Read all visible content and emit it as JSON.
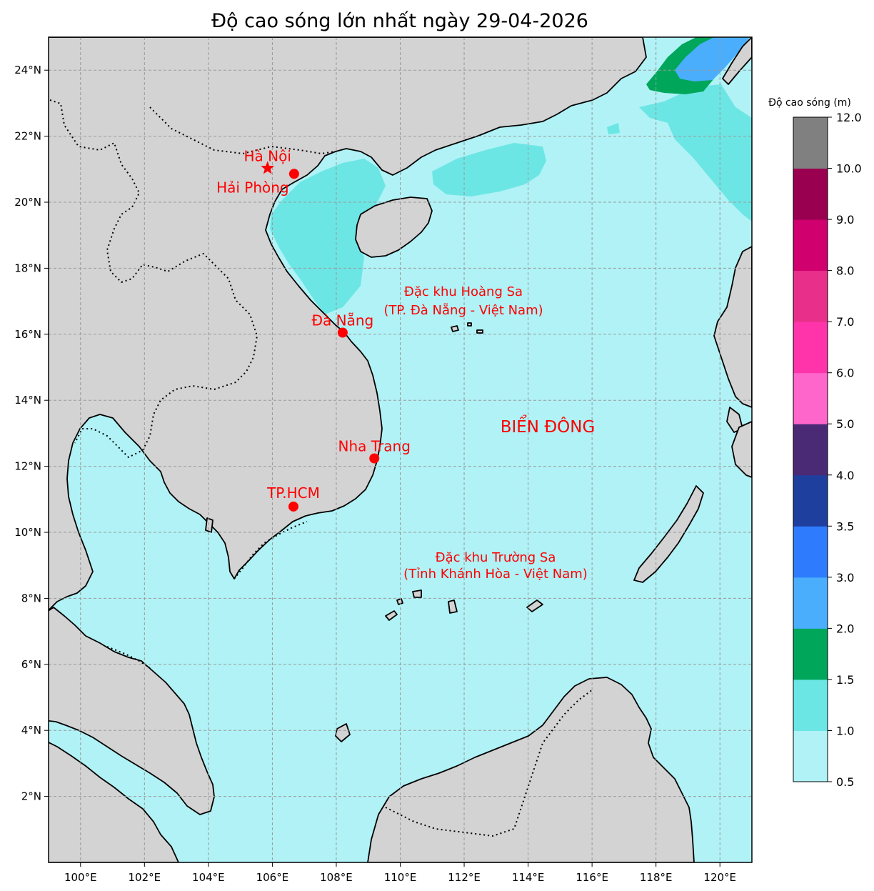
{
  "title": "Độ cao sóng lớn nhất ngày 29-04-2026",
  "map": {
    "lon_range": [
      99,
      121
    ],
    "lat_range": [
      0,
      25
    ],
    "lon_ticks": [
      {
        "value": 100,
        "label": "100°E"
      },
      {
        "value": 102,
        "label": "102°E"
      },
      {
        "value": 104,
        "label": "104°E"
      },
      {
        "value": 106,
        "label": "106°E"
      },
      {
        "value": 108,
        "label": "108°E"
      },
      {
        "value": 110,
        "label": "110°E"
      },
      {
        "value": 112,
        "label": "112°E"
      },
      {
        "value": 114,
        "label": "114°E"
      },
      {
        "value": 116,
        "label": "116°E"
      },
      {
        "value": 118,
        "label": "118°E"
      },
      {
        "value": 120,
        "label": "120°E"
      }
    ],
    "lat_ticks": [
      {
        "value": 2,
        "label": "2°N"
      },
      {
        "value": 4,
        "label": "4°N"
      },
      {
        "value": 6,
        "label": "6°N"
      },
      {
        "value": 8,
        "label": "8°N"
      },
      {
        "value": 10,
        "label": "10°N"
      },
      {
        "value": 12,
        "label": "12°N"
      },
      {
        "value": 14,
        "label": "14°N"
      },
      {
        "value": 16,
        "label": "16°N"
      },
      {
        "value": 18,
        "label": "18°N"
      },
      {
        "value": 20,
        "label": "20°N"
      },
      {
        "value": 22,
        "label": "22°N"
      },
      {
        "value": 24,
        "label": "24°N"
      }
    ],
    "grid": true,
    "colors": {
      "land": "#d3d3d3",
      "sea": "#b0f2f6",
      "coast": "#000000",
      "marker": "#ff0000",
      "label": "#ff0000"
    }
  },
  "cities": [
    {
      "name": "Hà Nội",
      "lon": 105.85,
      "lat": 21.03,
      "marker": "star"
    },
    {
      "name": "Hải Phòng",
      "lon": 106.68,
      "lat": 20.86,
      "marker": "dot"
    },
    {
      "name": "Đà Nẵng",
      "lon": 108.2,
      "lat": 16.05,
      "marker": "dot"
    },
    {
      "name": "Nha Trang",
      "lon": 109.19,
      "lat": 12.24,
      "marker": "dot"
    },
    {
      "name": "TP.HCM",
      "lon": 106.66,
      "lat": 10.78,
      "marker": "dot"
    }
  ],
  "region_labels": {
    "hoang_sa_line1": "Đặc khu Hoàng Sa",
    "hoang_sa_line2": "(TP. Đà Nẵng - Việt Nam)",
    "truong_sa_line1": "Đặc khu Trường Sa",
    "truong_sa_line2": "(Tỉnh Khánh Hòa - Việt Nam)",
    "bien_dong": "BIỂN ĐÔNG"
  },
  "colorbar": {
    "title": "Độ cao sóng (m)",
    "bins": [
      {
        "from": 0.5,
        "to": 1.0,
        "color": "#b0f2f6"
      },
      {
        "from": 1.0,
        "to": 1.5,
        "color": "#6ce6e4"
      },
      {
        "from": 1.5,
        "to": 2.0,
        "color": "#00a65a"
      },
      {
        "from": 2.0,
        "to": 3.0,
        "color": "#4aaefd"
      },
      {
        "from": 3.0,
        "to": 3.5,
        "color": "#2e7cfd"
      },
      {
        "from": 3.5,
        "to": 4.0,
        "color": "#1f3f9e"
      },
      {
        "from": 4.0,
        "to": 5.0,
        "color": "#4b2a75"
      },
      {
        "from": 5.0,
        "to": 6.0,
        "color": "#ff66cc"
      },
      {
        "from": 6.0,
        "to": 7.0,
        "color": "#ff33aa"
      },
      {
        "from": 7.0,
        "to": 8.0,
        "color": "#e8308a"
      },
      {
        "from": 8.0,
        "to": 9.0,
        "color": "#d0006f"
      },
      {
        "from": 9.0,
        "to": 10.0,
        "color": "#990050"
      },
      {
        "from": 10.0,
        "to": 12.0,
        "color": "#808080"
      }
    ],
    "tick_labels": [
      "0.5",
      "1.0",
      "1.5",
      "2.0",
      "3.0",
      "3.5",
      "4.0",
      "5.0",
      "6.0",
      "7.0",
      "8.0",
      "9.0",
      "10.0",
      "12.0"
    ]
  }
}
